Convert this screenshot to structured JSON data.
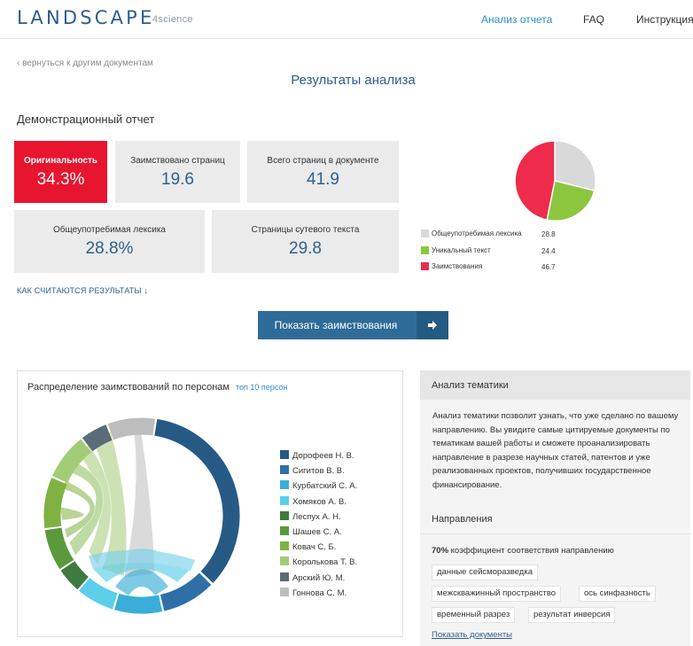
{
  "header": {
    "logo": "LANDSCAPE",
    "logo_sub": "4science",
    "nav": [
      "Анализ отчета",
      "FAQ",
      "Инструкция"
    ]
  },
  "back_link": "‹ вернуться к другим документам",
  "page_title": "Результаты анализа",
  "report_title": "Демонстрационный отчет",
  "cards": [
    {
      "label": "Оригинальность",
      "value": "34.3%"
    },
    {
      "label": "Заимствовано страниц",
      "value": "19.6"
    },
    {
      "label": "Всего страниц в документе",
      "value": "41.9"
    },
    {
      "label": "Общеупотребимая лексика",
      "value": "28.8%"
    },
    {
      "label": "Страницы сутевого текста",
      "value": "29.8"
    }
  ],
  "how_link": "КАК СЧИТАЮТСЯ РЕЗУЛЬТАТЫ ↓",
  "show_button": "Показать заимствования",
  "pie": {
    "legend": [
      {
        "label": "Общеупотребимая лексика",
        "value": "28.8",
        "color": "#d9d9d9"
      },
      {
        "label": "Уникальный текст",
        "value": "24.4",
        "color": "#8cc63f"
      },
      {
        "label": "Заимствования",
        "value": "46.7",
        "color": "#ee2a4d"
      }
    ]
  },
  "persons_panel": {
    "title": "Распределение заимствований по персонам",
    "subtitle": "топ 10 персон",
    "persons": [
      {
        "name": "Дорофеев Н. В.",
        "color": "#265a85"
      },
      {
        "name": "Сигитов В. В.",
        "color": "#2f6fa8"
      },
      {
        "name": "Курбатский С. А.",
        "color": "#3aaed8"
      },
      {
        "name": "Хомяков А. В.",
        "color": "#5ccfe8"
      },
      {
        "name": "Леспух А. Н.",
        "color": "#3f7a3f"
      },
      {
        "name": "Шашев С. А.",
        "color": "#5a9a3c"
      },
      {
        "name": "Ковач С. Б.",
        "color": "#7fb241"
      },
      {
        "name": "Королькова Т. В.",
        "color": "#a3cc77"
      },
      {
        "name": "Арский Ю. М.",
        "color": "#5b6b78"
      },
      {
        "name": "Гоннова С. М.",
        "color": "#bdbdbd"
      }
    ]
  },
  "topics_panel": {
    "title": "Анализ тематики",
    "description": "Анализ тематики позволит узнать, что уже сделано по вашему направлению. Вы увидите самые цитируемые документы по тематикам вашей работы и сможете проанализировать направление в разрезе научных статей, патентов и уже реализованных проектов, получивших государственное финансирование.",
    "directions_title": "Направления",
    "coef_value": "70%",
    "coef_text": " коэффициент соответствия направлению",
    "tags": [
      "данные сейсморазведка",
      "межскважинный пространство",
      "ось синфазность",
      "временный разрез",
      "результат инверсия"
    ],
    "docs_link": "Показать документы"
  }
}
